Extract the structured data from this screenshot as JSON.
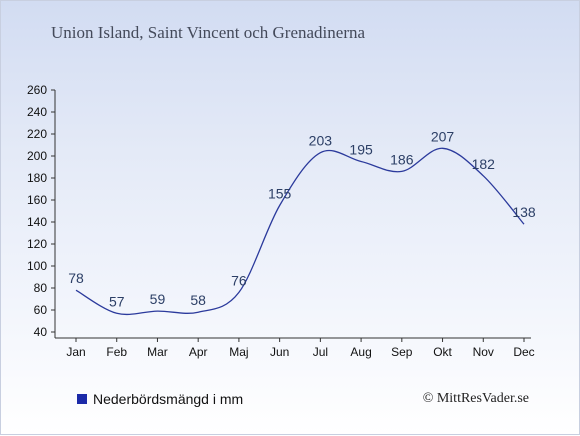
{
  "title": "Union Island, Saint Vincent och Grenadinerna",
  "legend": {
    "label": "Nederbördsmängd i mm"
  },
  "credit": "© MittResVader.se",
  "chart_data": {
    "type": "line",
    "categories": [
      "Jan",
      "Feb",
      "Mar",
      "Apr",
      "Maj",
      "Jun",
      "Jul",
      "Aug",
      "Sep",
      "Okt",
      "Nov",
      "Dec"
    ],
    "series": [
      {
        "name": "Nederbördsmängd i mm",
        "values": [
          78,
          57,
          59,
          58,
          76,
          155,
          203,
          195,
          186,
          207,
          182,
          138
        ],
        "color": "#2b3a9c"
      }
    ],
    "ylim": [
      40,
      260
    ],
    "yticks": [
      40,
      60,
      80,
      100,
      120,
      140,
      160,
      180,
      200,
      220,
      240,
      260
    ],
    "grid": false,
    "legend_position": "bottom-left"
  }
}
